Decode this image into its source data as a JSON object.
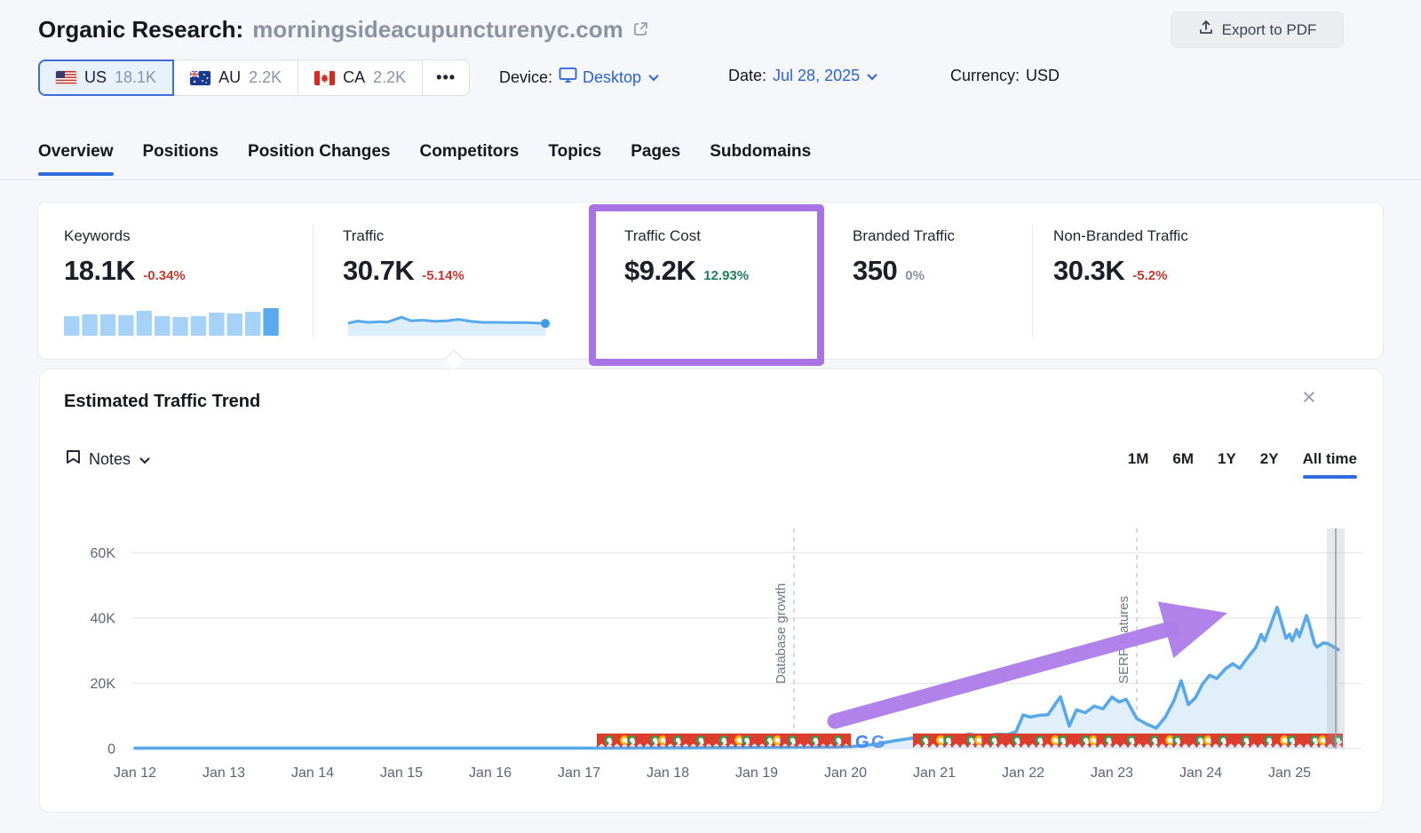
{
  "header": {
    "title": "Organic Research:",
    "domain": "morningsideacupuncturenyc.com",
    "export_button": "Export to PDF"
  },
  "filters": {
    "countries": [
      {
        "label": "US",
        "value": "18.1K",
        "selected": true
      },
      {
        "label": "AU",
        "value": "2.2K",
        "selected": false
      },
      {
        "label": "CA",
        "value": "2.2K",
        "selected": false
      }
    ],
    "more_label": "•••",
    "device_label": "Device:",
    "device_value": "Desktop",
    "date_label": "Date:",
    "date_value": "Jul 28, 2025",
    "currency_label": "Currency:",
    "currency_value": "USD"
  },
  "tabs": [
    {
      "label": "Overview",
      "active": true
    },
    {
      "label": "Positions",
      "active": false
    },
    {
      "label": "Position Changes",
      "active": false
    },
    {
      "label": "Competitors",
      "active": false
    },
    {
      "label": "Topics",
      "active": false
    },
    {
      "label": "Pages",
      "active": false
    },
    {
      "label": "Subdomains",
      "active": false
    }
  ],
  "metrics": [
    {
      "label": "Keywords",
      "value": "18.1K",
      "change": "-0.34%",
      "change_color": "#c43a30",
      "spark_bars": [
        22,
        24,
        24,
        23,
        28,
        22,
        21,
        22,
        26,
        25,
        27,
        31
      ],
      "bar_color": "#a5d2f6",
      "bar_color_last": "#58abee"
    },
    {
      "label": "Traffic",
      "value": "30.7K",
      "change": "-5.14%",
      "change_color": "#c43a30",
      "spark_line": [
        [
          0,
          0.42
        ],
        [
          0.05,
          0.52
        ],
        [
          0.1,
          0.46
        ],
        [
          0.16,
          0.49
        ],
        [
          0.2,
          0.47
        ],
        [
          0.27,
          0.7
        ],
        [
          0.32,
          0.53
        ],
        [
          0.38,
          0.56
        ],
        [
          0.44,
          0.51
        ],
        [
          0.5,
          0.53
        ],
        [
          0.56,
          0.6
        ],
        [
          0.62,
          0.51
        ],
        [
          0.68,
          0.46
        ],
        [
          0.75,
          0.46
        ],
        [
          0.82,
          0.45
        ],
        [
          0.9,
          0.45
        ],
        [
          1,
          0.41
        ]
      ],
      "line_color": "#57a9ec",
      "fill_color": "#ddeefb",
      "dot_color": "#3d9be8"
    },
    {
      "label": "Traffic Cost",
      "value": "$9.2K",
      "change": "12.93%",
      "change_color": "#1f7d5c",
      "highlighted": true
    },
    {
      "label": "Branded Traffic",
      "value": "350",
      "change": "0%",
      "change_color": "#8b91a0"
    },
    {
      "label": "Non-Branded Traffic",
      "value": "30.3K",
      "change": "-5.2%",
      "change_color": "#c43a30"
    }
  ],
  "trend_panel": {
    "title": "Estimated Traffic Trend",
    "notes_label": "Notes",
    "close_icon": "×",
    "ranges": [
      {
        "label": "1M",
        "active": false
      },
      {
        "label": "6M",
        "active": false
      },
      {
        "label": "1Y",
        "active": false
      },
      {
        "label": "2Y",
        "active": false
      },
      {
        "label": "All time",
        "active": true
      }
    ]
  },
  "chart_data": {
    "type": "area",
    "title": "Estimated Traffic Trend",
    "x_ticks": [
      "Jan 12",
      "Jan 13",
      "Jan 14",
      "Jan 15",
      "Jan 16",
      "Jan 17",
      "Jan 18",
      "Jan 19",
      "Jan 20",
      "Jan 21",
      "Jan 22",
      "Jan 23",
      "Jan 24",
      "Jan 25"
    ],
    "y_ticks": [
      "0",
      "20K",
      "40K",
      "60K"
    ],
    "ylim": [
      0,
      65000
    ],
    "grid": true,
    "line_color": "#57a9ec",
    "fill_color": "#dcecfa",
    "annotations": [
      {
        "label": "Database growth",
        "x_tick": 7.42
      },
      {
        "label": "SERP features",
        "x_tick": 11.28
      }
    ],
    "series": [
      {
        "name": "Estimated traffic",
        "points": [
          [
            0,
            150
          ],
          [
            1,
            150
          ],
          [
            2,
            150
          ],
          [
            3,
            150
          ],
          [
            4,
            150
          ],
          [
            5,
            150
          ],
          [
            5.5,
            200
          ],
          [
            6,
            250
          ],
          [
            6.5,
            300
          ],
          [
            7,
            350
          ],
          [
            7.5,
            400
          ],
          [
            7.9,
            500
          ],
          [
            8.1,
            700
          ],
          [
            8.35,
            1400
          ],
          [
            8.55,
            2400
          ],
          [
            8.75,
            3200
          ],
          [
            8.95,
            3700
          ],
          [
            9.1,
            3900
          ],
          [
            9.25,
            3700
          ],
          [
            9.4,
            4500
          ],
          [
            9.5,
            3700
          ],
          [
            9.62,
            4100
          ],
          [
            9.72,
            4400
          ],
          [
            9.82,
            4300
          ],
          [
            9.92,
            5200
          ],
          [
            10,
            10300
          ],
          [
            10.08,
            9700
          ],
          [
            10.18,
            10200
          ],
          [
            10.28,
            10400
          ],
          [
            10.42,
            15900
          ],
          [
            10.52,
            6900
          ],
          [
            10.6,
            11900
          ],
          [
            10.7,
            11000
          ],
          [
            10.8,
            13000
          ],
          [
            10.9,
            12200
          ],
          [
            11,
            15800
          ],
          [
            11.08,
            14300
          ],
          [
            11.16,
            15100
          ],
          [
            11.28,
            9200
          ],
          [
            11.4,
            7400
          ],
          [
            11.5,
            6300
          ],
          [
            11.6,
            9600
          ],
          [
            11.7,
            14800
          ],
          [
            11.78,
            20800
          ],
          [
            11.86,
            13500
          ],
          [
            11.94,
            15600
          ],
          [
            12.02,
            19800
          ],
          [
            12.1,
            22500
          ],
          [
            12.18,
            21500
          ],
          [
            12.28,
            24500
          ],
          [
            12.36,
            26000
          ],
          [
            12.44,
            24600
          ],
          [
            12.52,
            27600
          ],
          [
            12.62,
            31000
          ],
          [
            12.68,
            35000
          ],
          [
            12.72,
            33000
          ],
          [
            12.86,
            43300
          ],
          [
            12.96,
            33800
          ],
          [
            13,
            35100
          ],
          [
            13.03,
            33000
          ],
          [
            13.08,
            36500
          ],
          [
            13.11,
            34300
          ],
          [
            13.19,
            40800
          ],
          [
            13.22,
            38400
          ],
          [
            13.28,
            32200
          ],
          [
            13.31,
            31100
          ],
          [
            13.38,
            32400
          ],
          [
            13.43,
            32200
          ],
          [
            13.55,
            30300
          ]
        ]
      }
    ],
    "note_marker_groups": [
      {
        "from_tick": 5.2,
        "to_tick": 8.0,
        "approx_count": 33
      },
      {
        "from_tick": 8.76,
        "to_tick": 13.6,
        "approx_count": 57
      }
    ],
    "g_marker_ticks": [
      8.11,
      8.29
    ],
    "current_period_bar": {
      "from_tick": 13.42,
      "to_tick": 13.62
    },
    "trend_arrow": {
      "from_tick": 7.88,
      "from_value": 8400,
      "to_tick": 12.3,
      "to_value": 41600,
      "color": "#ad7ce9"
    }
  }
}
